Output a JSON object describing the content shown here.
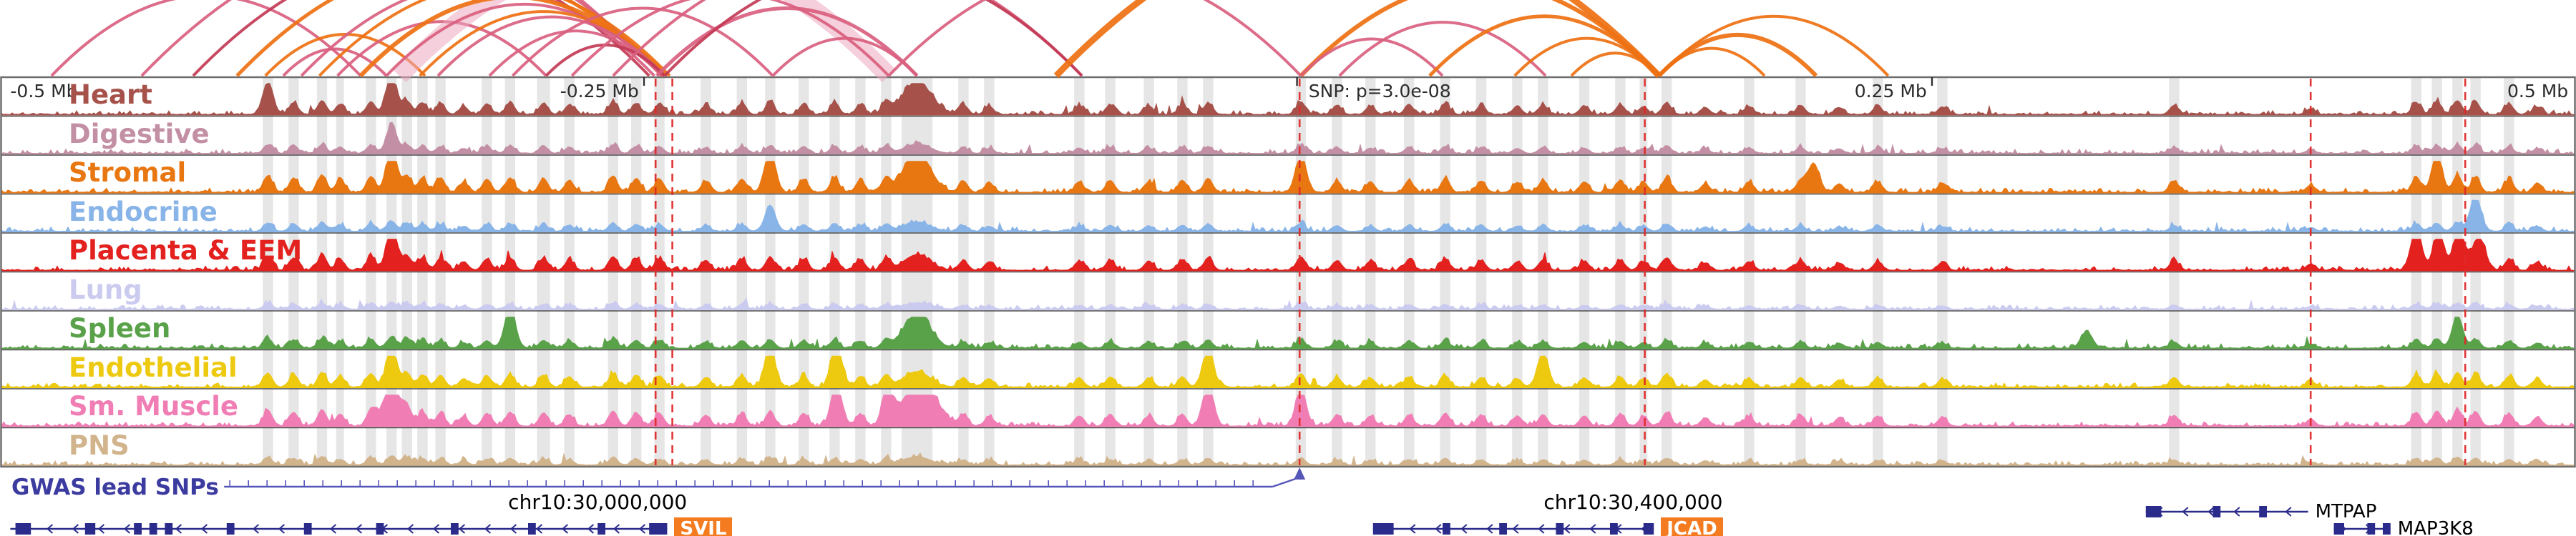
{
  "axis": {
    "color": "#2b2b2b",
    "tick_labels": [
      {
        "label": "-0.5 Mb",
        "x": 0.004,
        "anchor": "start"
      },
      {
        "label": "-0.25 Mb",
        "x": 0.248,
        "anchor": "end"
      },
      {
        "label": "SNP: p=3.0e-08",
        "x": 0.508,
        "anchor": "start"
      },
      {
        "label": "0.25 Mb",
        "x": 0.748,
        "anchor": "end"
      },
      {
        "label": "0.5 Mb",
        "x": 0.997,
        "anchor": "end"
      }
    ],
    "tick_positions": [
      0.25,
      0.5035,
      0.75
    ]
  },
  "coordinates": {
    "labels": [
      {
        "label": "chr10:30,000,000",
        "x": 0.232
      },
      {
        "label": "chr10:30,400,000",
        "x": 0.634
      }
    ]
  },
  "gwas": {
    "label": "GWAS lead SNPs",
    "line_color": "#5656B8",
    "line_start_x": 0.087,
    "elbow_x": 0.494,
    "snp_x": 0.5045
  },
  "genes": {
    "color": "#2B2B8C",
    "highlight_bg": "#F47B20",
    "items": [
      {
        "name": "SVIL",
        "start": 0.004,
        "end": 0.259,
        "lane": 2,
        "strand": "-",
        "highlight": true,
        "exons": [
          [
            0.006,
            0.012
          ],
          [
            0.033,
            0.037
          ],
          [
            0.052,
            0.055
          ],
          [
            0.058,
            0.061
          ],
          [
            0.064,
            0.067
          ],
          [
            0.088,
            0.091
          ],
          [
            0.118,
            0.121
          ],
          [
            0.146,
            0.149
          ],
          [
            0.175,
            0.178
          ],
          [
            0.205,
            0.208
          ],
          [
            0.232,
            0.235
          ],
          [
            0.252,
            0.259
          ]
        ]
      },
      {
        "name": "JCAD",
        "start": 0.533,
        "end": 0.642,
        "lane": 2,
        "strand": "-",
        "highlight": true,
        "exons": [
          [
            0.533,
            0.541
          ],
          [
            0.56,
            0.563
          ],
          [
            0.582,
            0.585
          ],
          [
            0.604,
            0.607
          ],
          [
            0.625,
            0.628
          ],
          [
            0.638,
            0.642
          ]
        ]
      },
      {
        "name": "MTPAP",
        "start": 0.833,
        "end": 0.896,
        "lane": 1,
        "strand": "-",
        "highlight": false,
        "exons": [
          [
            0.833,
            0.839
          ],
          [
            0.859,
            0.862
          ],
          [
            0.877,
            0.88
          ]
        ]
      },
      {
        "name": "MAP3K8",
        "start": 0.906,
        "end": 0.928,
        "lane": 2,
        "strand": "+",
        "highlight": false,
        "exons": [
          [
            0.906,
            0.91
          ],
          [
            0.919,
            0.922
          ],
          [
            0.925,
            0.928
          ]
        ]
      }
    ]
  },
  "chart_data": {
    "type": "area",
    "x_axis": {
      "range_mb": [
        -0.5,
        0.5
      ],
      "center": "SNP: p=3.0e-08",
      "grid": false
    },
    "tracks": [
      {
        "name": "Heart",
        "color": "#A6524B",
        "scale": 0.8,
        "extra_peaks": [
          [
            0.152,
            0.85
          ],
          [
            0.104,
            0.6
          ],
          [
            0.356,
            0.55,
            0.006
          ]
        ]
      },
      {
        "name": "Digestive",
        "color": "#C38FA4",
        "scale": 0.5,
        "extra_peaks": [
          [
            0.152,
            0.55
          ]
        ]
      },
      {
        "name": "Stromal",
        "color": "#E97711",
        "scale": 1.0,
        "extra_peaks": [
          [
            0.152,
            0.92
          ],
          [
            0.299,
            0.9
          ],
          [
            0.505,
            0.75
          ],
          [
            0.704,
            0.88
          ],
          [
            0.946,
            0.7
          ],
          [
            0.356,
            0.7,
            0.005
          ]
        ]
      },
      {
        "name": "Endocrine",
        "color": "#88B4E8",
        "scale": 0.5,
        "extra_peaks": [
          [
            0.961,
            0.85
          ],
          [
            0.299,
            0.55
          ]
        ]
      },
      {
        "name": "Placenta & EEM",
        "color": "#E3211E",
        "scale": 0.85,
        "extra_peaks": [
          [
            0.152,
            0.85
          ],
          [
            0.938,
            0.95
          ],
          [
            0.947,
            0.85
          ],
          [
            0.955,
            1.0
          ],
          [
            0.963,
            0.8
          ]
        ]
      },
      {
        "name": "Lung",
        "color": "#CBCBF0",
        "scale": 0.35,
        "extra_peaks": []
      },
      {
        "name": "Spleen",
        "color": "#5AA24A",
        "scale": 0.55,
        "extra_peaks": [
          [
            0.198,
            1.0
          ],
          [
            0.356,
            0.75,
            0.005
          ],
          [
            0.81,
            0.5
          ],
          [
            0.954,
            0.7
          ]
        ]
      },
      {
        "name": "Endothelial",
        "color": "#EDC90F",
        "scale": 0.85,
        "extra_peaks": [
          [
            0.325,
            1.0
          ],
          [
            0.469,
            0.85
          ],
          [
            0.599,
            0.8
          ],
          [
            0.152,
            0.8
          ],
          [
            0.299,
            0.8
          ]
        ]
      },
      {
        "name": "Sm. Muscle",
        "color": "#F07EB4",
        "scale": 0.95,
        "extra_peaks": [
          [
            0.152,
            1.0,
            0.0035
          ],
          [
            0.325,
            0.9
          ],
          [
            0.345,
            0.85
          ],
          [
            0.358,
            1.0,
            0.006
          ],
          [
            0.469,
            0.9
          ],
          [
            0.505,
            0.7
          ]
        ]
      },
      {
        "name": "PNS",
        "color": "#D2B48C",
        "scale": 0.45,
        "extra_peaks": []
      }
    ],
    "common_peaks": [
      [
        0.104,
        0.5
      ],
      [
        0.114,
        0.44
      ],
      [
        0.125,
        0.52
      ],
      [
        0.132,
        0.38
      ],
      [
        0.144,
        0.48
      ],
      [
        0.152,
        0.62
      ],
      [
        0.158,
        0.5
      ],
      [
        0.164,
        0.44
      ],
      [
        0.171,
        0.42
      ],
      [
        0.18,
        0.3
      ],
      [
        0.189,
        0.4
      ],
      [
        0.198,
        0.44
      ],
      [
        0.211,
        0.42
      ],
      [
        0.221,
        0.36
      ],
      [
        0.238,
        0.48
      ],
      [
        0.247,
        0.42
      ],
      [
        0.256,
        0.4
      ],
      [
        0.274,
        0.34
      ],
      [
        0.288,
        0.4
      ],
      [
        0.299,
        0.46
      ],
      [
        0.312,
        0.4
      ],
      [
        0.324,
        0.44
      ],
      [
        0.334,
        0.38
      ],
      [
        0.344,
        0.42
      ],
      [
        0.356,
        0.55,
        0.005
      ],
      [
        0.374,
        0.34
      ],
      [
        0.384,
        0.3
      ],
      [
        0.419,
        0.32
      ],
      [
        0.431,
        0.36
      ],
      [
        0.446,
        0.32
      ],
      [
        0.459,
        0.36
      ],
      [
        0.469,
        0.42
      ],
      [
        0.505,
        0.48
      ],
      [
        0.519,
        0.34
      ],
      [
        0.532,
        0.32
      ],
      [
        0.547,
        0.36
      ],
      [
        0.561,
        0.4
      ],
      [
        0.575,
        0.34
      ],
      [
        0.589,
        0.3
      ],
      [
        0.599,
        0.36
      ],
      [
        0.615,
        0.32
      ],
      [
        0.629,
        0.36
      ],
      [
        0.638,
        0.3
      ],
      [
        0.647,
        0.44
      ],
      [
        0.662,
        0.26
      ],
      [
        0.679,
        0.3
      ],
      [
        0.699,
        0.34
      ],
      [
        0.714,
        0.26
      ],
      [
        0.729,
        0.3
      ],
      [
        0.754,
        0.28
      ],
      [
        0.844,
        0.34
      ],
      [
        0.897,
        0.22
      ],
      [
        0.938,
        0.44
      ],
      [
        0.946,
        0.48
      ],
      [
        0.954,
        0.52
      ],
      [
        0.961,
        0.46
      ],
      [
        0.974,
        0.38
      ],
      [
        0.985,
        0.28
      ]
    ],
    "highlight_bands": [
      [
        0.104,
        0.004
      ],
      [
        0.114,
        0.004
      ],
      [
        0.125,
        0.004
      ],
      [
        0.132,
        0.003
      ],
      [
        0.144,
        0.004
      ],
      [
        0.152,
        0.004
      ],
      [
        0.158,
        0.004
      ],
      [
        0.164,
        0.004
      ],
      [
        0.171,
        0.004
      ],
      [
        0.189,
        0.004
      ],
      [
        0.198,
        0.004
      ],
      [
        0.211,
        0.005
      ],
      [
        0.221,
        0.004
      ],
      [
        0.238,
        0.004
      ],
      [
        0.247,
        0.004
      ],
      [
        0.256,
        0.004
      ],
      [
        0.274,
        0.004
      ],
      [
        0.288,
        0.004
      ],
      [
        0.299,
        0.004
      ],
      [
        0.312,
        0.004
      ],
      [
        0.324,
        0.004
      ],
      [
        0.334,
        0.004
      ],
      [
        0.344,
        0.004
      ],
      [
        0.356,
        0.012
      ],
      [
        0.374,
        0.004
      ],
      [
        0.384,
        0.004
      ],
      [
        0.419,
        0.004
      ],
      [
        0.431,
        0.004
      ],
      [
        0.446,
        0.004
      ],
      [
        0.459,
        0.004
      ],
      [
        0.469,
        0.004
      ],
      [
        0.505,
        0.004
      ],
      [
        0.519,
        0.004
      ],
      [
        0.532,
        0.004
      ],
      [
        0.547,
        0.004
      ],
      [
        0.561,
        0.004
      ],
      [
        0.575,
        0.004
      ],
      [
        0.589,
        0.004
      ],
      [
        0.599,
        0.004
      ],
      [
        0.615,
        0.004
      ],
      [
        0.629,
        0.004
      ],
      [
        0.638,
        0.003
      ],
      [
        0.647,
        0.004
      ],
      [
        0.679,
        0.004
      ],
      [
        0.699,
        0.004
      ],
      [
        0.729,
        0.004
      ],
      [
        0.754,
        0.004
      ],
      [
        0.844,
        0.004
      ],
      [
        0.938,
        0.004
      ],
      [
        0.946,
        0.004
      ],
      [
        0.954,
        0.004
      ],
      [
        0.961,
        0.004
      ],
      [
        0.974,
        0.004
      ]
    ],
    "snp_lines": {
      "color": "#E02A2A",
      "positions": [
        0.2545,
        0.261,
        0.5045,
        0.6385,
        0.897,
        0.957
      ]
    },
    "arcs": {
      "palette": {
        "orange": "#EE7112",
        "pink": "#D95F7F",
        "red": "#C23A55",
        "pale": "#ECA8BE"
      },
      "items": [
        [
          -0.06,
          0.257,
          "pink",
          4
        ],
        [
          0.02,
          0.14,
          "pink",
          4
        ],
        [
          0.055,
          0.258,
          "pink",
          4
        ],
        [
          0.075,
          0.252,
          "red",
          4
        ],
        [
          0.092,
          0.257,
          "orange",
          5
        ],
        [
          0.103,
          0.165,
          "orange",
          4
        ],
        [
          0.11,
          0.15,
          "pink",
          4
        ],
        [
          0.117,
          0.254,
          "pink",
          4
        ],
        [
          0.124,
          0.26,
          "orange",
          4
        ],
        [
          0.131,
          0.212,
          "pink",
          4
        ],
        [
          0.155,
          0.345,
          "pale",
          26,
          0.55
        ],
        [
          0.14,
          0.258,
          "orange",
          6
        ],
        [
          0.15,
          0.257,
          "pink",
          4
        ],
        [
          0.163,
          0.259,
          "orange",
          4
        ],
        [
          0.17,
          0.258,
          "pink",
          4
        ],
        [
          0.19,
          0.257,
          "pink",
          4
        ],
        [
          0.199,
          0.3,
          "pink",
          4
        ],
        [
          0.212,
          0.258,
          "red",
          4
        ],
        [
          0.222,
          0.345,
          "pink",
          4
        ],
        [
          0.238,
          0.42,
          "pink",
          4
        ],
        [
          0.255,
          0.356,
          "pink",
          5
        ],
        [
          0.258,
          0.42,
          "red",
          4
        ],
        [
          0.3,
          0.356,
          "pink",
          4
        ],
        [
          0.345,
          0.505,
          "pink",
          4
        ],
        [
          0.41,
          0.644,
          "orange",
          9
        ],
        [
          0.505,
          0.644,
          "orange",
          6
        ],
        [
          0.505,
          0.56,
          "pink",
          4
        ],
        [
          0.52,
          0.6,
          "pink",
          4
        ],
        [
          0.555,
          0.644,
          "orange",
          5
        ],
        [
          0.588,
          0.644,
          "orange",
          4
        ],
        [
          0.61,
          0.644,
          "orange",
          4
        ],
        [
          0.644,
          0.705,
          "orange",
          6
        ],
        [
          0.644,
          0.685,
          "orange",
          4
        ],
        [
          0.644,
          0.733,
          "orange",
          4
        ]
      ]
    }
  }
}
